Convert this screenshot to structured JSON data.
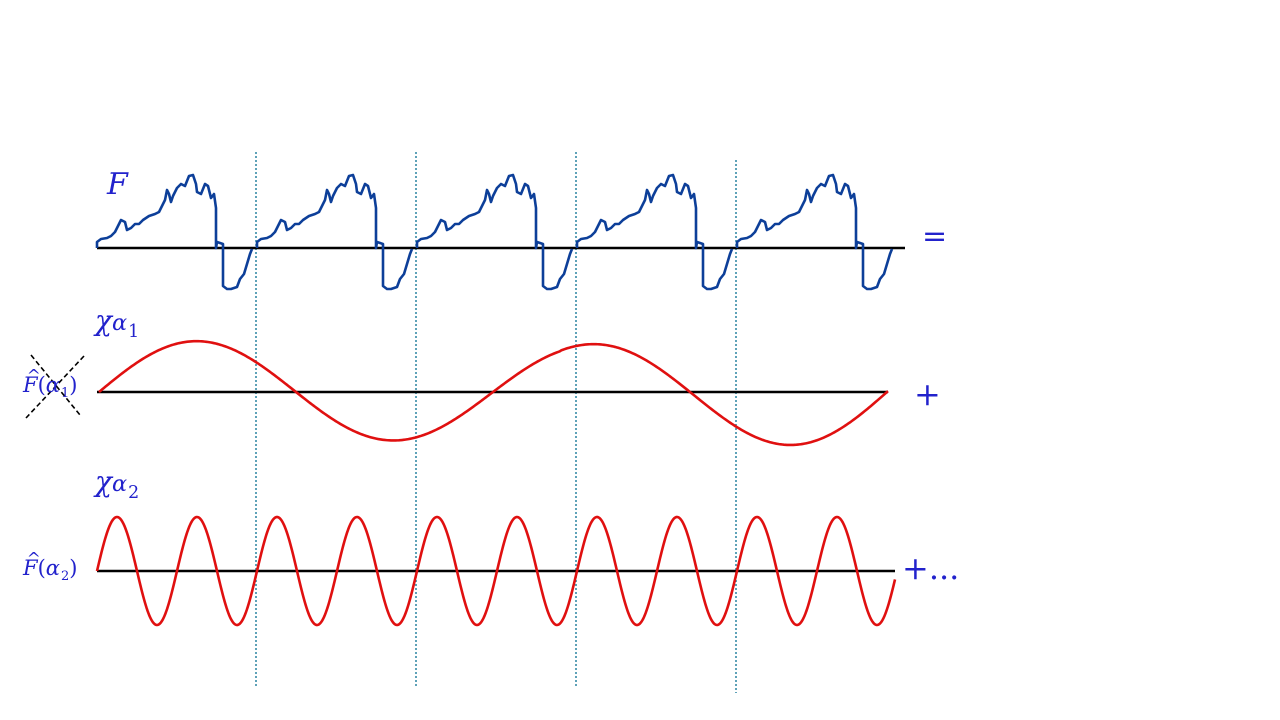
{
  "labels": {
    "f_symbol": "F",
    "chi": "χ",
    "alpha": "α",
    "sub_1": "1",
    "sub_2": "2",
    "fhat": "F",
    "paren_open": "(",
    "paren_close": ")",
    "equals": "=",
    "plus": "+",
    "plus_dots": "+..."
  },
  "colors": {
    "signal": "#0d3f99",
    "wave": "#e01010",
    "axis": "#000000",
    "dotted": "#1a7a99",
    "text": "#2222cc"
  }
}
